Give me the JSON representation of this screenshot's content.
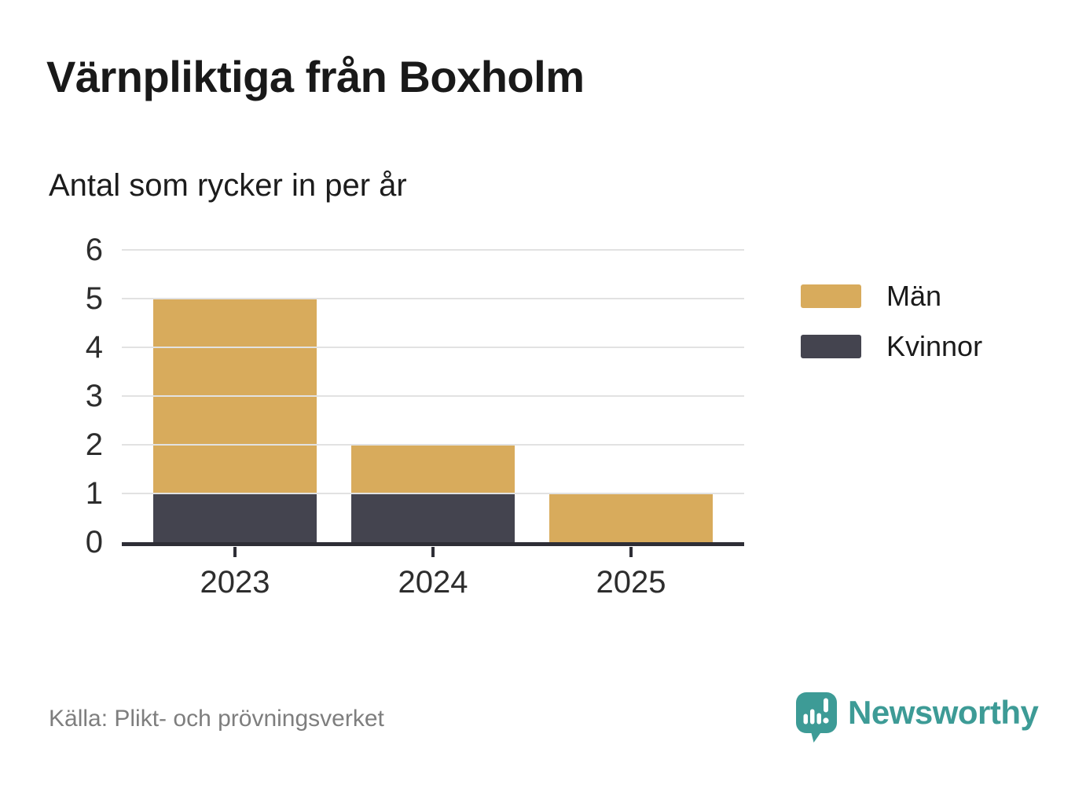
{
  "header": {
    "title": "Värnpliktiga från Boxholm",
    "subtitle": "Antal som rycker in per år"
  },
  "chart_data": {
    "type": "bar",
    "stacked": true,
    "title": "Värnpliktiga från Boxholm",
    "subtitle": "Antal som rycker in per år",
    "categories": [
      "2023",
      "2024",
      "2025"
    ],
    "series": [
      {
        "name": "Män",
        "color": "#d8ab5c",
        "values": [
          4,
          1,
          1
        ]
      },
      {
        "name": "Kvinnor",
        "color": "#44444f",
        "values": [
          1,
          1,
          0
        ]
      }
    ],
    "totals": [
      5,
      2,
      1
    ],
    "yticks": [
      0,
      1,
      2,
      3,
      4,
      5,
      6
    ],
    "ylim": [
      0,
      6
    ],
    "xlabel": "",
    "ylabel": "",
    "grid": true,
    "legend_position": "right",
    "axis_color": "#2e2e36",
    "grid_color": "#e2e2e2"
  },
  "footer": {
    "source": "Källa: Plikt- och prövningsverket",
    "brand": "Newsworthy",
    "brand_color": "#3d9b96"
  }
}
